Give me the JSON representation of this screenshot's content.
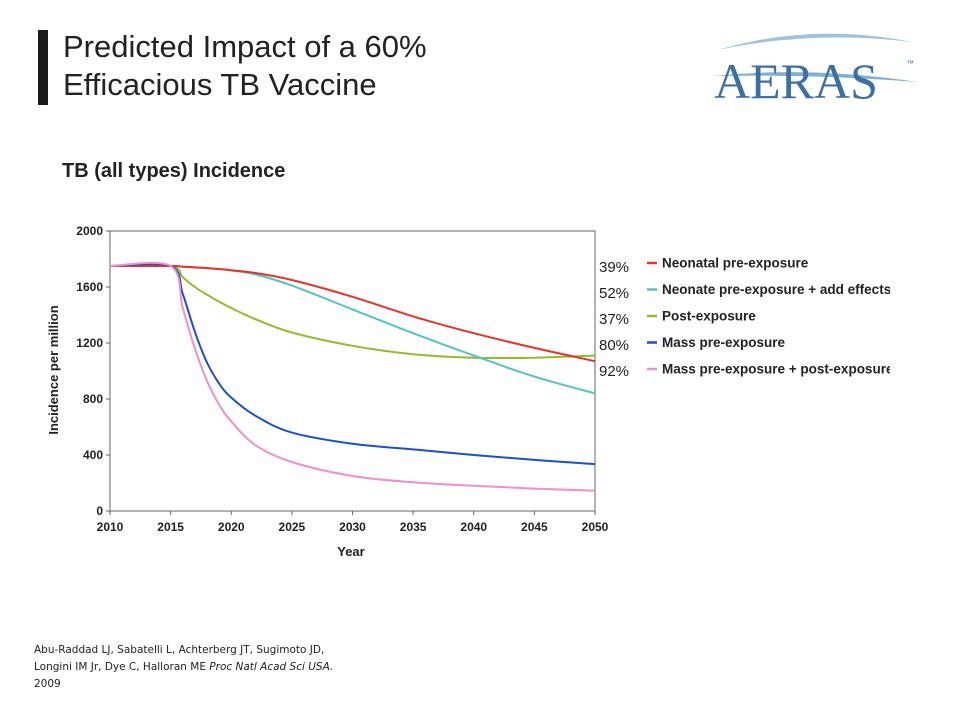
{
  "slide": {
    "title_line1": "Predicted Impact of a 60%",
    "title_line2": "Efficacious TB Vaccine",
    "logo_text": "AERAS",
    "logo_mark": "™"
  },
  "percentages": [
    "39%",
    "52%",
    "37%",
    "80%",
    "92%"
  ],
  "citation": {
    "line1": "Abu-Raddad LJ, Sabatelli L, Achterberg JT, Sugimoto JD,",
    "line2_plain": "Longini IM Jr, Dye C, Halloran ME ",
    "line2_italic": "Proc Natl Acad Sci USA.",
    "line3": "2009"
  },
  "chart_data": {
    "type": "line",
    "title": "TB (all types) Incidence",
    "xlabel": "Year",
    "ylabel": "Incidence per million",
    "xlim": [
      2010,
      2050
    ],
    "ylim": [
      0,
      2000
    ],
    "xticks": [
      2010,
      2015,
      2020,
      2025,
      2030,
      2035,
      2040,
      2045,
      2050
    ],
    "yticks": [
      0,
      400,
      800,
      1200,
      1600,
      2000
    ],
    "grid": false,
    "legend_position": "right",
    "x": [
      2010,
      2015,
      2016,
      2017,
      2018,
      2019,
      2020,
      2022,
      2025,
      2030,
      2035,
      2040,
      2045,
      2050
    ],
    "series": [
      {
        "name": "Neonatal pre-exposure",
        "color": "#e8322a",
        "values": [
          1750,
          1750,
          1745,
          1740,
          1735,
          1728,
          1720,
          1700,
          1650,
          1530,
          1390,
          1270,
          1165,
          1070
        ]
      },
      {
        "name": "Neonate pre-exposure + add effects",
        "color": "#55c3c3",
        "values": [
          1750,
          1750,
          1745,
          1740,
          1735,
          1728,
          1718,
          1690,
          1610,
          1440,
          1270,
          1110,
          960,
          840
        ]
      },
      {
        "name": "Post-exposure",
        "color": "#94bb2a",
        "values": [
          1750,
          1750,
          1670,
          1600,
          1545,
          1495,
          1450,
          1370,
          1275,
          1180,
          1120,
          1095,
          1095,
          1110
        ]
      },
      {
        "name": "Mass pre-exposure",
        "color": "#1a4fce",
        "values": [
          1750,
          1750,
          1550,
          1280,
          1060,
          910,
          810,
          680,
          560,
          480,
          440,
          400,
          365,
          335
        ]
      },
      {
        "name": "Mass pre-exposure + post-exposure",
        "color": "#ee90cc",
        "values": [
          1750,
          1750,
          1450,
          1160,
          930,
          760,
          640,
          470,
          350,
          250,
          205,
          180,
          160,
          145
        ]
      }
    ]
  }
}
